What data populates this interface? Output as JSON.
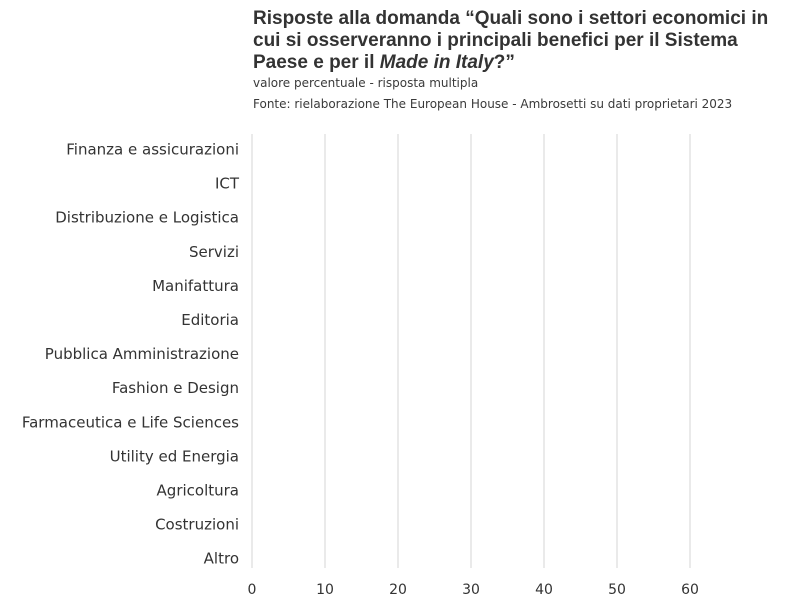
{
  "chart_data": {
    "type": "bar",
    "orientation": "horizontal",
    "title_parts": [
      "Risposte alla domanda “Quali sono i settori economici in cui si osserveranno i principali benefici per il Sistema Paese e per il ",
      "Made in Italy",
      "?”"
    ],
    "subtitle": "valore percentuale - risposta multipla",
    "source": "Fonte: rielaborazione The European House - Ambrosetti su dati proprietari 2023",
    "categories": [
      "Finanza e assicurazioni",
      "ICT",
      "Distribuzione e Logistica",
      "Servizi",
      "Manifattura",
      "Editoria",
      "Pubblica Amministrazione",
      "Fashion e Design",
      "Farmaceutica e Life Sciences",
      "Utility ed Energia",
      "Agricoltura",
      "Costruzioni",
      "Altro"
    ],
    "values": [
      null,
      null,
      null,
      null,
      null,
      null,
      null,
      null,
      null,
      null,
      null,
      null,
      null
    ],
    "xticks": [
      0,
      10,
      20,
      30,
      40,
      50,
      60
    ],
    "xlim": [
      0,
      70
    ],
    "grid": true,
    "colors": {
      "gridline": "#e3e3e3",
      "text": "#333333"
    }
  }
}
